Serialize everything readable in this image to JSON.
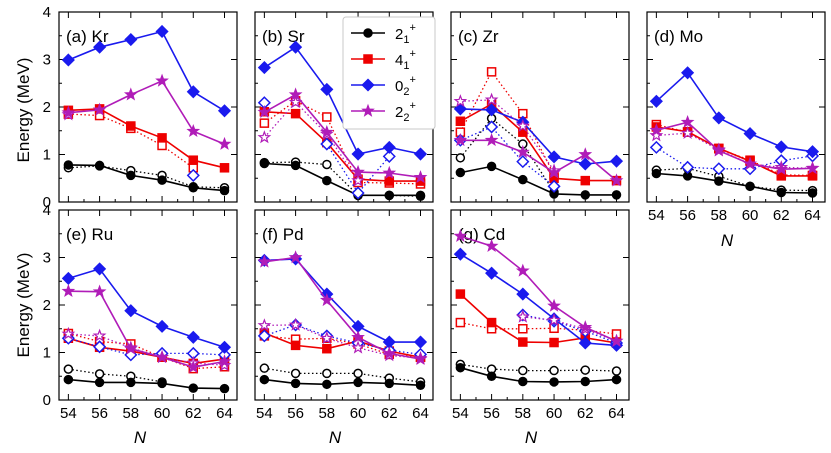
{
  "chart_data": {
    "type": "line",
    "ylabel": "Energy (MeV)",
    "xlabel": "N",
    "xlim": [
      53.4,
      64.8
    ],
    "ylim": [
      0,
      4
    ],
    "x": [
      54,
      56,
      58,
      60,
      62,
      64
    ],
    "x_ticks": [
      "54",
      "56",
      "58",
      "60",
      "62",
      "64"
    ],
    "y_ticks": [
      "0",
      "1",
      "2",
      "3",
      "4"
    ],
    "legend": {
      "placement": "top-left of panel (b)",
      "entries": [
        {
          "key": "s21",
          "base": "2",
          "sub": "1",
          "sup": "+",
          "color": "#000000",
          "marker": "circle"
        },
        {
          "key": "s41",
          "base": "4",
          "sub": "1",
          "sup": "+",
          "color": "#ee0000",
          "marker": "square"
        },
        {
          "key": "s02",
          "base": "0",
          "sub": "2",
          "sup": "+",
          "color": "#1a1aee",
          "marker": "diamond"
        },
        {
          "key": "s22",
          "base": "2",
          "sub": "2",
          "sup": "+",
          "color": "#b01cb8",
          "marker": "star"
        }
      ]
    },
    "note": "Filled markers with solid lines and open markers with dotted lines are two data sets per level.",
    "panels": [
      {
        "id": "a",
        "label": "(a) Kr",
        "series": {
          "s21": {
            "solid": [
              0.78,
              0.77,
              0.56,
              0.46,
              0.3,
              0.24
            ],
            "dotted": [
              0.72,
              0.76,
              0.66,
              0.56,
              0.32,
              0.3
            ]
          },
          "s41": {
            "solid": [
              1.93,
              1.96,
              1.6,
              1.35,
              0.88,
              0.72
            ],
            "dotted": [
              1.85,
              1.82,
              1.55,
              1.19,
              0.72,
              null
            ]
          },
          "s02": {
            "solid": [
              2.99,
              3.26,
              3.42,
              3.59,
              2.32,
              1.92
            ],
            "dotted": [
              null,
              null,
              null,
              null,
              0.56,
              null
            ]
          },
          "s22": {
            "solid": [
              1.88,
              1.94,
              2.26,
              2.55,
              1.49,
              1.22
            ],
            "dotted": [
              1.84,
              null,
              null,
              null,
              null,
              null
            ]
          }
        }
      },
      {
        "id": "b",
        "label": "(b) Sr",
        "series": {
          "s21": {
            "solid": [
              0.81,
              0.77,
              0.45,
              0.14,
              0.14,
              0.14
            ],
            "dotted": [
              0.83,
              0.84,
              0.79,
              0.14,
              0.14,
              0.12
            ]
          },
          "s41": {
            "solid": [
              1.9,
              1.86,
              1.25,
              0.48,
              0.44,
              0.44
            ],
            "dotted": [
              1.66,
              2.13,
              1.79,
              0.41,
              0.4,
              0.38
            ]
          },
          "s02": {
            "solid": [
              2.83,
              3.26,
              2.37,
              1.01,
              1.15,
              1.01
            ],
            "dotted": [
              2.09,
              null,
              1.22,
              0.19,
              0.96,
              null
            ]
          },
          "s22": {
            "solid": [
              1.89,
              2.26,
              1.47,
              0.63,
              0.61,
              0.52
            ],
            "dotted": [
              1.36,
              2.1,
              1.43,
              0.45,
              null,
              null
            ]
          }
        }
      },
      {
        "id": "c",
        "label": "(c) Zr",
        "series": {
          "s21": {
            "solid": [
              0.62,
              0.75,
              0.47,
              0.17,
              0.15,
              0.15
            ],
            "dotted": [
              0.93,
              1.76,
              1.22,
              0.21,
              null,
              null
            ]
          },
          "s41": {
            "solid": [
              1.7,
              2.06,
              1.47,
              0.5,
              0.45,
              0.45
            ],
            "dotted": [
              1.47,
              2.74,
              1.86,
              0.57,
              null,
              null
            ]
          },
          "s02": {
            "solid": [
              1.96,
              1.94,
              1.68,
              0.95,
              0.8,
              0.86
            ],
            "dotted": [
              1.3,
              1.58,
              0.85,
              0.33,
              null,
              null
            ]
          },
          "s22": {
            "solid": [
              1.3,
              1.3,
              1.05,
              0.62,
              1.0,
              0.45
            ],
            "dotted": [
              2.12,
              2.15,
              1.6,
              0.66,
              null,
              null
            ]
          }
        }
      },
      {
        "id": "d",
        "label": "(d) Mo",
        "series": {
          "s21": {
            "solid": [
              0.6,
              0.55,
              0.44,
              0.33,
              0.2,
              0.19
            ],
            "dotted": [
              0.67,
              0.71,
              0.54,
              0.33,
              0.25,
              0.24
            ]
          },
          "s41": {
            "solid": [
              1.58,
              1.48,
              1.13,
              0.86,
              0.55,
              0.55
            ],
            "dotted": [
              1.63,
              1.47,
              1.12,
              0.88,
              0.57,
              0.56
            ]
          },
          "s02": {
            "solid": [
              2.12,
              2.72,
              1.77,
              1.44,
              1.16,
              1.06
            ],
            "dotted": [
              1.15,
              0.73,
              0.7,
              0.7,
              0.87,
              0.97
            ]
          },
          "s22": {
            "solid": [
              1.51,
              1.68,
              1.08,
              0.8,
              0.69,
              0.71
            ],
            "dotted": [
              1.4,
              1.45,
              1.1,
              0.8,
              0.73,
              0.71
            ]
          }
        }
      },
      {
        "id": "e",
        "label": "(e) Ru",
        "series": {
          "s21": {
            "solid": [
              0.43,
              0.37,
              0.37,
              0.35,
              0.25,
              0.24
            ],
            "dotted": [
              0.65,
              0.55,
              0.5,
              0.38,
              null,
              null
            ]
          },
          "s41": {
            "solid": [
              1.3,
              1.11,
              1.03,
              0.9,
              0.77,
              0.86
            ],
            "dotted": [
              1.4,
              1.23,
              1.18,
              0.9,
              0.66,
              0.7
            ]
          },
          "s02": {
            "solid": [
              2.56,
              2.76,
              1.88,
              1.55,
              1.32,
              1.11
            ],
            "dotted": [
              1.3,
              1.12,
              0.95,
              0.98,
              0.98,
              0.95
            ]
          },
          "s22": {
            "solid": [
              2.29,
              2.28,
              1.08,
              0.9,
              0.69,
              0.81
            ],
            "dotted": [
              1.39,
              1.35,
              1.1,
              0.9,
              0.78,
              0.73
            ]
          }
        }
      },
      {
        "id": "f",
        "label": "(f) Pd",
        "series": {
          "s21": {
            "solid": [
              0.43,
              0.35,
              0.33,
              0.37,
              0.35,
              0.31
            ],
            "dotted": [
              0.67,
              0.56,
              0.56,
              0.56,
              0.46,
              0.38
            ]
          },
          "s41": {
            "solid": [
              1.41,
              1.15,
              1.08,
              1.24,
              1.03,
              0.9
            ],
            "dotted": [
              1.35,
              1.28,
              1.3,
              1.18,
              0.96,
              0.9
            ]
          },
          "s02": {
            "solid": [
              2.94,
              2.97,
              2.23,
              1.55,
              1.22,
              1.22
            ],
            "dotted": [
              1.35,
              1.58,
              1.35,
              1.2,
              1.05,
              0.96
            ]
          },
          "s22": {
            "solid": [
              2.91,
              3.0,
              2.1,
              1.32,
              0.98,
              0.86
            ],
            "dotted": [
              1.57,
              1.58,
              1.3,
              1.1,
              0.94,
              0.88
            ]
          }
        }
      },
      {
        "id": "g",
        "label": "(g) Cd",
        "series": {
          "s21": {
            "solid": [
              0.68,
              0.5,
              0.39,
              0.38,
              0.39,
              0.43
            ],
            "dotted": [
              0.75,
              0.65,
              0.62,
              0.62,
              0.63,
              0.61
            ]
          },
          "s41": {
            "solid": [
              2.23,
              1.63,
              1.22,
              1.21,
              1.31,
              1.2
            ],
            "dotted": [
              1.63,
              1.5,
              1.5,
              1.51,
              1.47,
              1.39
            ]
          },
          "s02": {
            "solid": [
              3.07,
              2.67,
              2.23,
              1.71,
              1.2,
              1.15
            ],
            "dotted": [
              null,
              null,
              1.79,
              1.66,
              1.45,
              1.2
            ]
          },
          "s22": {
            "solid": [
              3.45,
              3.24,
              2.72,
              1.98,
              1.53,
              1.24
            ],
            "dotted": [
              null,
              null,
              1.75,
              1.68,
              1.49,
              1.24
            ]
          }
        }
      }
    ]
  }
}
